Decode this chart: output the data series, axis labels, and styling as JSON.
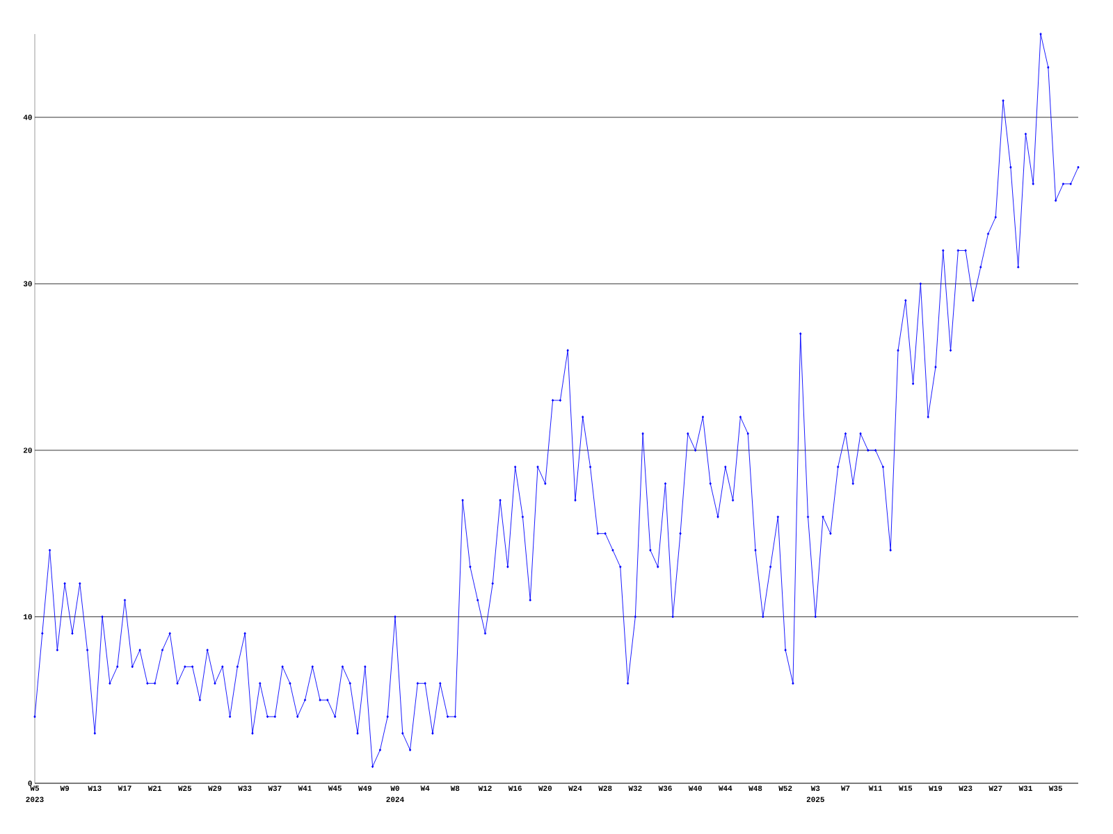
{
  "chart_data": {
    "type": "line",
    "categories": [
      "W5",
      null,
      null,
      null,
      "W9",
      null,
      null,
      null,
      "W13",
      null,
      null,
      null,
      "W17",
      null,
      null,
      null,
      "W21",
      null,
      null,
      null,
      "W25",
      null,
      null,
      null,
      "W29",
      null,
      null,
      null,
      "W33",
      null,
      null,
      null,
      "W37",
      null,
      null,
      null,
      "W41",
      null,
      null,
      null,
      "W45",
      null,
      null,
      null,
      "W49",
      null,
      null,
      null,
      "W0",
      null,
      null,
      null,
      "W4",
      null,
      null,
      null,
      "W8",
      null,
      null,
      null,
      "W12",
      null,
      null,
      null,
      "W16",
      null,
      null,
      null,
      "W20",
      null,
      null,
      null,
      "W24",
      null,
      null,
      null,
      "W28",
      null,
      null,
      null,
      "W32",
      null,
      null,
      null,
      "W36",
      null,
      null,
      null,
      "W40",
      null,
      null,
      null,
      "W44",
      null,
      null,
      null,
      "W48",
      null,
      null,
      null,
      "W52",
      null,
      null,
      null,
      "W3",
      null,
      null,
      null,
      "W7",
      null,
      null,
      null,
      "W11",
      null,
      null,
      null,
      "W15",
      null,
      null,
      null,
      "W19",
      null,
      null,
      null,
      "W23",
      null,
      null,
      null,
      "W27",
      null,
      null,
      null,
      "W31",
      null,
      null,
      null,
      "W35",
      null,
      null,
      null
    ],
    "series": [
      {
        "color": "#0000ff",
        "values": [
          4,
          9,
          14,
          8,
          12,
          9,
          12,
          8,
          3,
          10,
          6,
          7,
          11,
          7,
          8,
          6,
          6,
          8,
          9,
          6,
          7,
          7,
          5,
          8,
          6,
          7,
          4,
          7,
          9,
          3,
          6,
          4,
          4,
          7,
          6,
          4,
          5,
          7,
          5,
          5,
          4,
          7,
          6,
          3,
          7,
          1,
          2,
          4,
          10,
          3,
          2,
          6,
          6,
          3,
          6,
          4,
          4,
          17,
          13,
          11,
          9,
          12,
          17,
          13,
          19,
          16,
          11,
          19,
          18,
          23,
          23,
          26,
          17,
          22,
          19,
          15,
          15,
          14,
          13,
          6,
          10,
          21,
          14,
          13,
          18,
          10,
          15,
          21,
          20,
          22,
          18,
          16,
          19,
          17,
          22,
          21,
          14,
          10,
          13,
          16,
          8,
          6,
          27,
          16,
          10,
          16,
          15,
          19,
          21,
          18,
          21,
          20,
          20,
          19,
          14,
          26,
          29,
          24,
          30,
          22,
          25,
          32,
          26,
          32,
          32,
          29,
          31,
          33,
          34,
          41,
          37,
          31,
          39,
          36,
          45,
          43,
          35,
          36,
          36,
          37
        ]
      }
    ],
    "ylim": [
      0,
      45
    ],
    "yticks": [
      0,
      10,
      20,
      30,
      40
    ],
    "grid": "y",
    "marker": "diamond",
    "line_style": "solid",
    "annotations": [
      "2023",
      "2024",
      "2025"
    ]
  }
}
